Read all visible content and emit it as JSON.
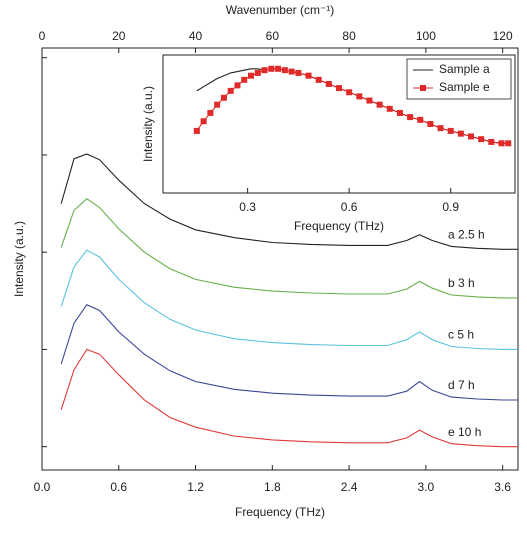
{
  "chart_data": [
    {
      "type": "line",
      "xlabel": "Frequency (THz)",
      "ylabel": "Intensity (a.u.)",
      "x2label": "Wavenumber (cm⁻¹)",
      "x": [
        0.15,
        0.25,
        0.35,
        0.45,
        0.6,
        0.8,
        1.0,
        1.2,
        1.5,
        1.8,
        2.1,
        2.4,
        2.7,
        2.85,
        2.95,
        3.05,
        3.2,
        3.4,
        3.6,
        3.72
      ],
      "series": [
        {
          "name": "a  2.5 h",
          "color": "#222222",
          "values": [
            2.5,
            2.96,
            3.01,
            2.95,
            2.74,
            2.5,
            2.34,
            2.23,
            2.15,
            2.1,
            2.08,
            2.07,
            2.07,
            2.12,
            2.18,
            2.12,
            2.06,
            2.04,
            2.03,
            2.03
          ]
        },
        {
          "name": "b  3 h",
          "color": "#66b04a",
          "values": [
            2.05,
            2.43,
            2.55,
            2.46,
            2.24,
            2.0,
            1.83,
            1.72,
            1.64,
            1.6,
            1.58,
            1.57,
            1.57,
            1.62,
            1.7,
            1.63,
            1.56,
            1.54,
            1.53,
            1.53
          ]
        },
        {
          "name": "c  5 h",
          "color": "#5bc3de",
          "values": [
            1.44,
            1.85,
            2.02,
            1.95,
            1.72,
            1.48,
            1.31,
            1.2,
            1.11,
            1.07,
            1.05,
            1.04,
            1.04,
            1.1,
            1.18,
            1.1,
            1.03,
            1.01,
            1.0,
            1.0
          ]
        },
        {
          "name": "d  7 h",
          "color": "#3a4796",
          "values": [
            0.85,
            1.27,
            1.46,
            1.4,
            1.18,
            0.95,
            0.78,
            0.67,
            0.59,
            0.55,
            0.53,
            0.52,
            0.52,
            0.57,
            0.67,
            0.58,
            0.51,
            0.49,
            0.48,
            0.48
          ]
        },
        {
          "name": "e  10 h",
          "color": "#e03a3a",
          "values": [
            0.38,
            0.79,
            1.0,
            0.95,
            0.74,
            0.48,
            0.3,
            0.2,
            0.11,
            0.07,
            0.05,
            0.04,
            0.04,
            0.09,
            0.17,
            0.1,
            0.03,
            0.01,
            0,
            0
          ]
        }
      ],
      "xlim": [
        0,
        3.72
      ],
      "xticks": [
        {
          "value": 0,
          "label": "0.0"
        },
        0.6,
        1.2,
        1.8,
        2.4,
        {
          "value": 3,
          "label": "3.0"
        },
        3.6
      ],
      "x2lim": [
        0,
        124
      ],
      "x2ticks": [
        0,
        20,
        40,
        60,
        80,
        100,
        120
      ],
      "ylim": [
        -0.24,
        4.1
      ],
      "yticks": [
        0,
        1,
        2,
        3,
        4
      ]
    },
    {
      "type": "line",
      "xlabel": "Frequency (THz)",
      "ylabel": "Intensity (a.u.)",
      "legend": "top-right",
      "x": [
        0.15,
        0.17,
        0.19,
        0.21,
        0.23,
        0.25,
        0.27,
        0.29,
        0.31,
        0.33,
        0.35,
        0.37,
        0.39,
        0.41,
        0.43,
        0.45,
        0.48,
        0.51,
        0.54,
        0.57,
        0.6,
        0.63,
        0.66,
        0.69,
        0.72,
        0.75,
        0.78,
        0.81,
        0.84,
        0.87,
        0.9,
        0.93,
        0.96,
        0.99,
        1.02,
        1.05,
        1.07
      ],
      "series": [
        {
          "name": "Sample a",
          "color": "#222222",
          "values": [
            0.74,
            0.77,
            0.8,
            0.83,
            0.85,
            0.87,
            0.88,
            0.89,
            0.9,
            0.9,
            0.89,
            0.9,
            0.9,
            0.89,
            0.88,
            0.87,
            0.85,
            0.82,
            0.79,
            0.76,
            0.73,
            0.7,
            0.67,
            0.64,
            0.61,
            0.58,
            0.55,
            0.53,
            0.5,
            0.47,
            0.45,
            0.43,
            0.41,
            0.39,
            0.37,
            0.36,
            0.36
          ]
        },
        {
          "name": "Sample e",
          "color": "#e02a2a",
          "marker": "square",
          "values": [
            0.45,
            0.52,
            0.58,
            0.64,
            0.69,
            0.74,
            0.78,
            0.82,
            0.85,
            0.87,
            0.89,
            0.9,
            0.9,
            0.89,
            0.88,
            0.87,
            0.85,
            0.82,
            0.79,
            0.76,
            0.73,
            0.7,
            0.67,
            0.64,
            0.61,
            0.58,
            0.55,
            0.53,
            0.5,
            0.47,
            0.45,
            0.43,
            0.41,
            0.39,
            0.37,
            0.36,
            0.36
          ]
        }
      ],
      "xlim": [
        0.05,
        1.09
      ],
      "xticks": [
        0.3,
        0.6,
        0.9
      ],
      "ylim": [
        0,
        1
      ]
    }
  ]
}
